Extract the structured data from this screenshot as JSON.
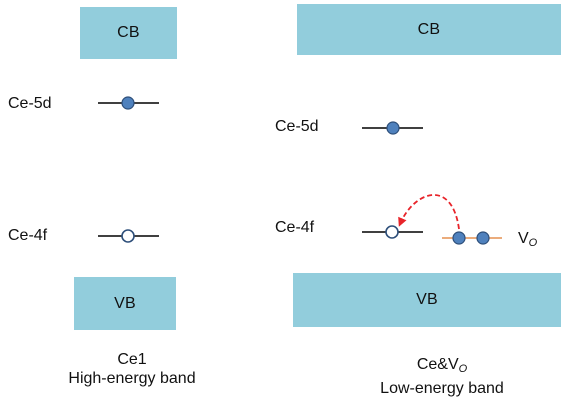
{
  "colors": {
    "band": "#92CDDC",
    "level_line": "#000000",
    "electron_fill": "#4F81BD",
    "electron_stroke": "#2E4F7A",
    "hole_fill": "#ffffff",
    "hole_stroke": "#2E4F7A",
    "vo_line": "#E8A06A",
    "transition_arrow": "#E8242A"
  },
  "left_panel": {
    "cb_label": "CB",
    "vb_label": "VB",
    "ce5d_label": "Ce-5d",
    "ce4f_label": "Ce-4f",
    "caption_line1": "Ce1",
    "caption_line2": "High-energy band"
  },
  "right_panel": {
    "cb_label": "CB",
    "vb_label": "VB",
    "ce5d_label": "Ce-5d",
    "ce4f_label": "Ce-4f",
    "vo_label_main": "V",
    "vo_label_sub": "O",
    "caption_line1_main": "Ce&V",
    "caption_line1_sub": "O",
    "caption_line2": "Low-energy band"
  }
}
